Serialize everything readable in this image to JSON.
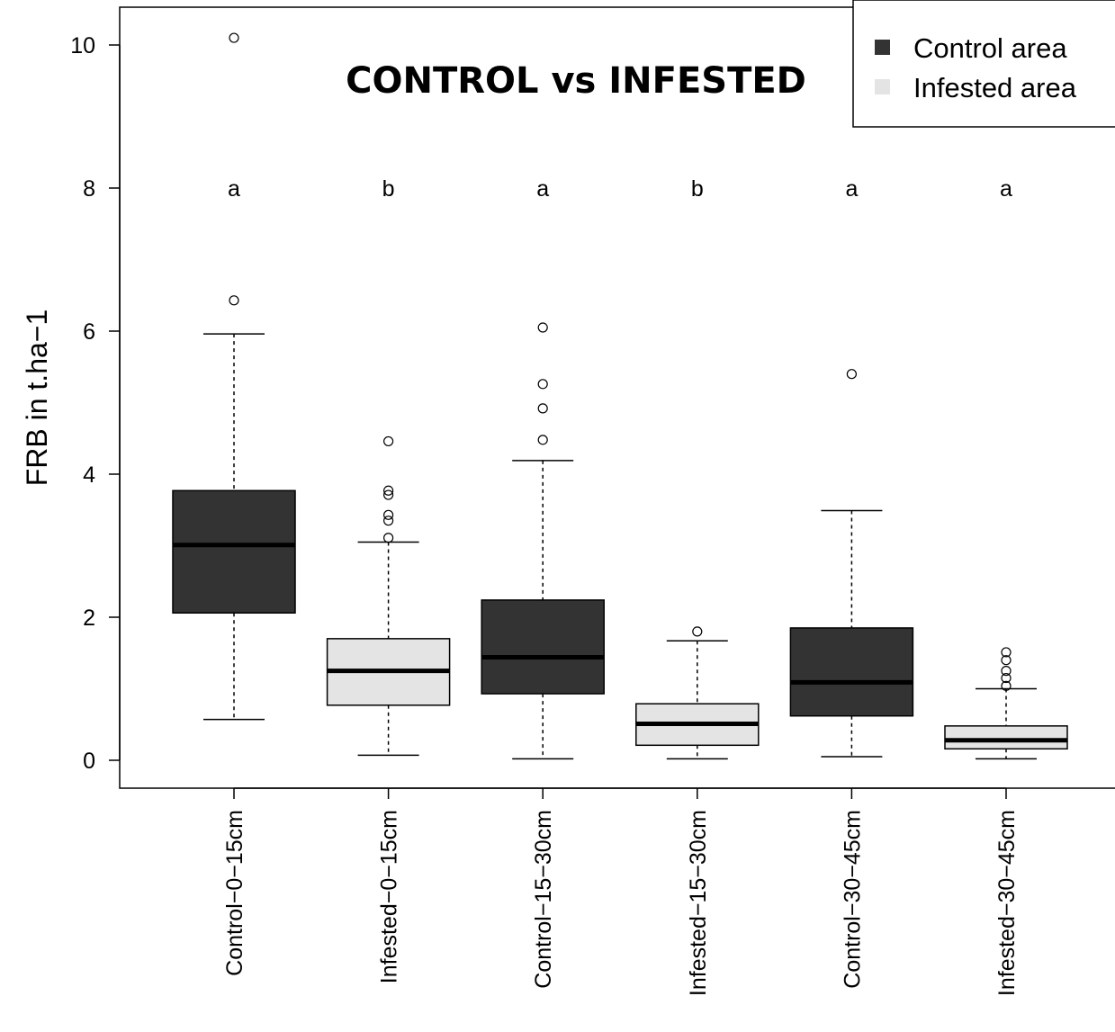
{
  "chart_data": {
    "type": "boxplot",
    "title": "CONTROL vs INFESTED",
    "ylabel": "FRB in t.ha−1",
    "xlabel": "",
    "ylim": [
      -0.4,
      10.55
    ],
    "yticks": [
      0,
      2,
      4,
      6,
      8,
      10
    ],
    "grid": false,
    "legend": {
      "position": "top-right",
      "entries": [
        {
          "label": "Control area",
          "color": "#333333"
        },
        {
          "label": "Infested area",
          "color": "#e4e4e4"
        }
      ]
    },
    "letters_y": 8,
    "categories": [
      "Control−0−15cm",
      "Infested−0−15cm",
      "Control−15−30cm",
      "Infested−15−30cm",
      "Control−30−45cm",
      "Infested−30−45cm"
    ],
    "boxes": [
      {
        "group": "Control area",
        "whisker_low": 0.57,
        "q1": 2.06,
        "median": 3.01,
        "q3": 3.77,
        "whisker_high": 5.96,
        "outliers": [
          6.43,
          10.1
        ],
        "letter": "a",
        "color": "#333333"
      },
      {
        "group": "Infested area",
        "whisker_low": 0.07,
        "q1": 0.77,
        "median": 1.25,
        "q3": 1.7,
        "whisker_high": 3.05,
        "outliers": [
          3.11,
          3.35,
          3.43,
          3.71,
          3.77,
          4.46
        ],
        "letter": "b",
        "color": "#e4e4e4"
      },
      {
        "group": "Control area",
        "whisker_low": 0.02,
        "q1": 0.93,
        "median": 1.44,
        "q3": 2.24,
        "whisker_high": 4.19,
        "outliers": [
          4.48,
          4.92,
          5.26,
          6.05
        ],
        "letter": "a",
        "color": "#333333"
      },
      {
        "group": "Infested area",
        "whisker_low": 0.02,
        "q1": 0.21,
        "median": 0.51,
        "q3": 0.79,
        "whisker_high": 1.67,
        "outliers": [
          1.8
        ],
        "letter": "b",
        "color": "#e4e4e4"
      },
      {
        "group": "Control area",
        "whisker_low": 0.05,
        "q1": 0.62,
        "median": 1.09,
        "q3": 1.85,
        "whisker_high": 3.49,
        "outliers": [
          5.4
        ],
        "letter": "a",
        "color": "#333333"
      },
      {
        "group": "Infested area",
        "whisker_low": 0.02,
        "q1": 0.16,
        "median": 0.28,
        "q3": 0.48,
        "whisker_high": 1.0,
        "outliers": [
          1.04,
          1.15,
          1.25,
          1.4,
          1.51
        ],
        "letter": "a",
        "color": "#e4e4e4"
      }
    ]
  }
}
